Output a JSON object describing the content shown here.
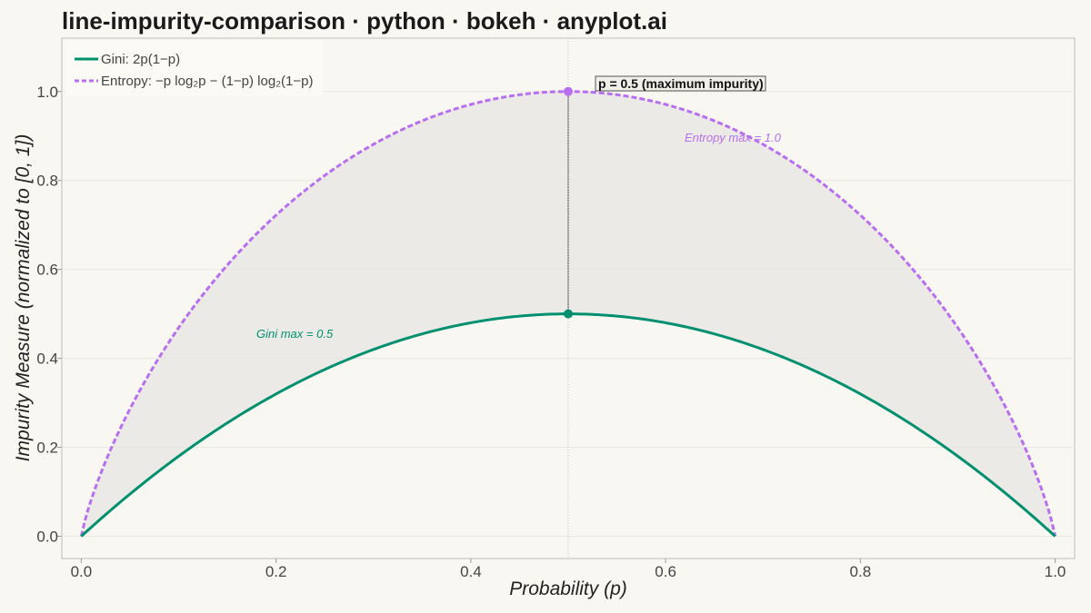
{
  "chart_data": {
    "type": "line",
    "title": "line-impurity-comparison · python · bokeh · anyplot.ai",
    "xlabel": "Probability (p)",
    "ylabel": "Impurity Measure (normalized to [0, 1])",
    "xlim": [
      -0.02,
      1.02
    ],
    "ylim": [
      -0.05,
      1.12
    ],
    "x_ticks": [
      0.0,
      0.2,
      0.4,
      0.6,
      0.8,
      1.0
    ],
    "x_tick_labels": [
      "0.0",
      "0.2",
      "0.4",
      "0.6",
      "0.8",
      "1.0"
    ],
    "y_ticks": [
      0.0,
      0.2,
      0.4,
      0.6,
      0.8,
      1.0
    ],
    "y_tick_labels": [
      "0.0",
      "0.2",
      "0.4",
      "0.6",
      "0.8",
      "1.0"
    ],
    "grid": true,
    "legend_position": "top-left",
    "series": [
      {
        "name": "Gini: 2p(1−p)",
        "function": "gini_normalized",
        "color": "#009070",
        "style": "solid",
        "peak": [
          0.5,
          0.5
        ]
      },
      {
        "name": "Entropy: −p log₂p − (1−p) log₂(1−p)",
        "function": "entropy",
        "color": "#b86ef0",
        "style": "dashed",
        "peak": [
          0.5,
          1.0
        ]
      }
    ],
    "fill_between": {
      "color": "#e6e6e2"
    },
    "annotations": [
      {
        "id": "max_label",
        "text": "p = 0.5  (maximum impurity)",
        "x": 0.5,
        "y": 1.0
      },
      {
        "id": "entropy_max",
        "text": "Entropy max = 1.0",
        "x": 0.62,
        "y": 0.89,
        "color": "#b86ef0"
      },
      {
        "id": "gini_max",
        "text": "Gini max = 0.5",
        "x": 0.18,
        "y": 0.45,
        "color": "#009070"
      }
    ]
  }
}
